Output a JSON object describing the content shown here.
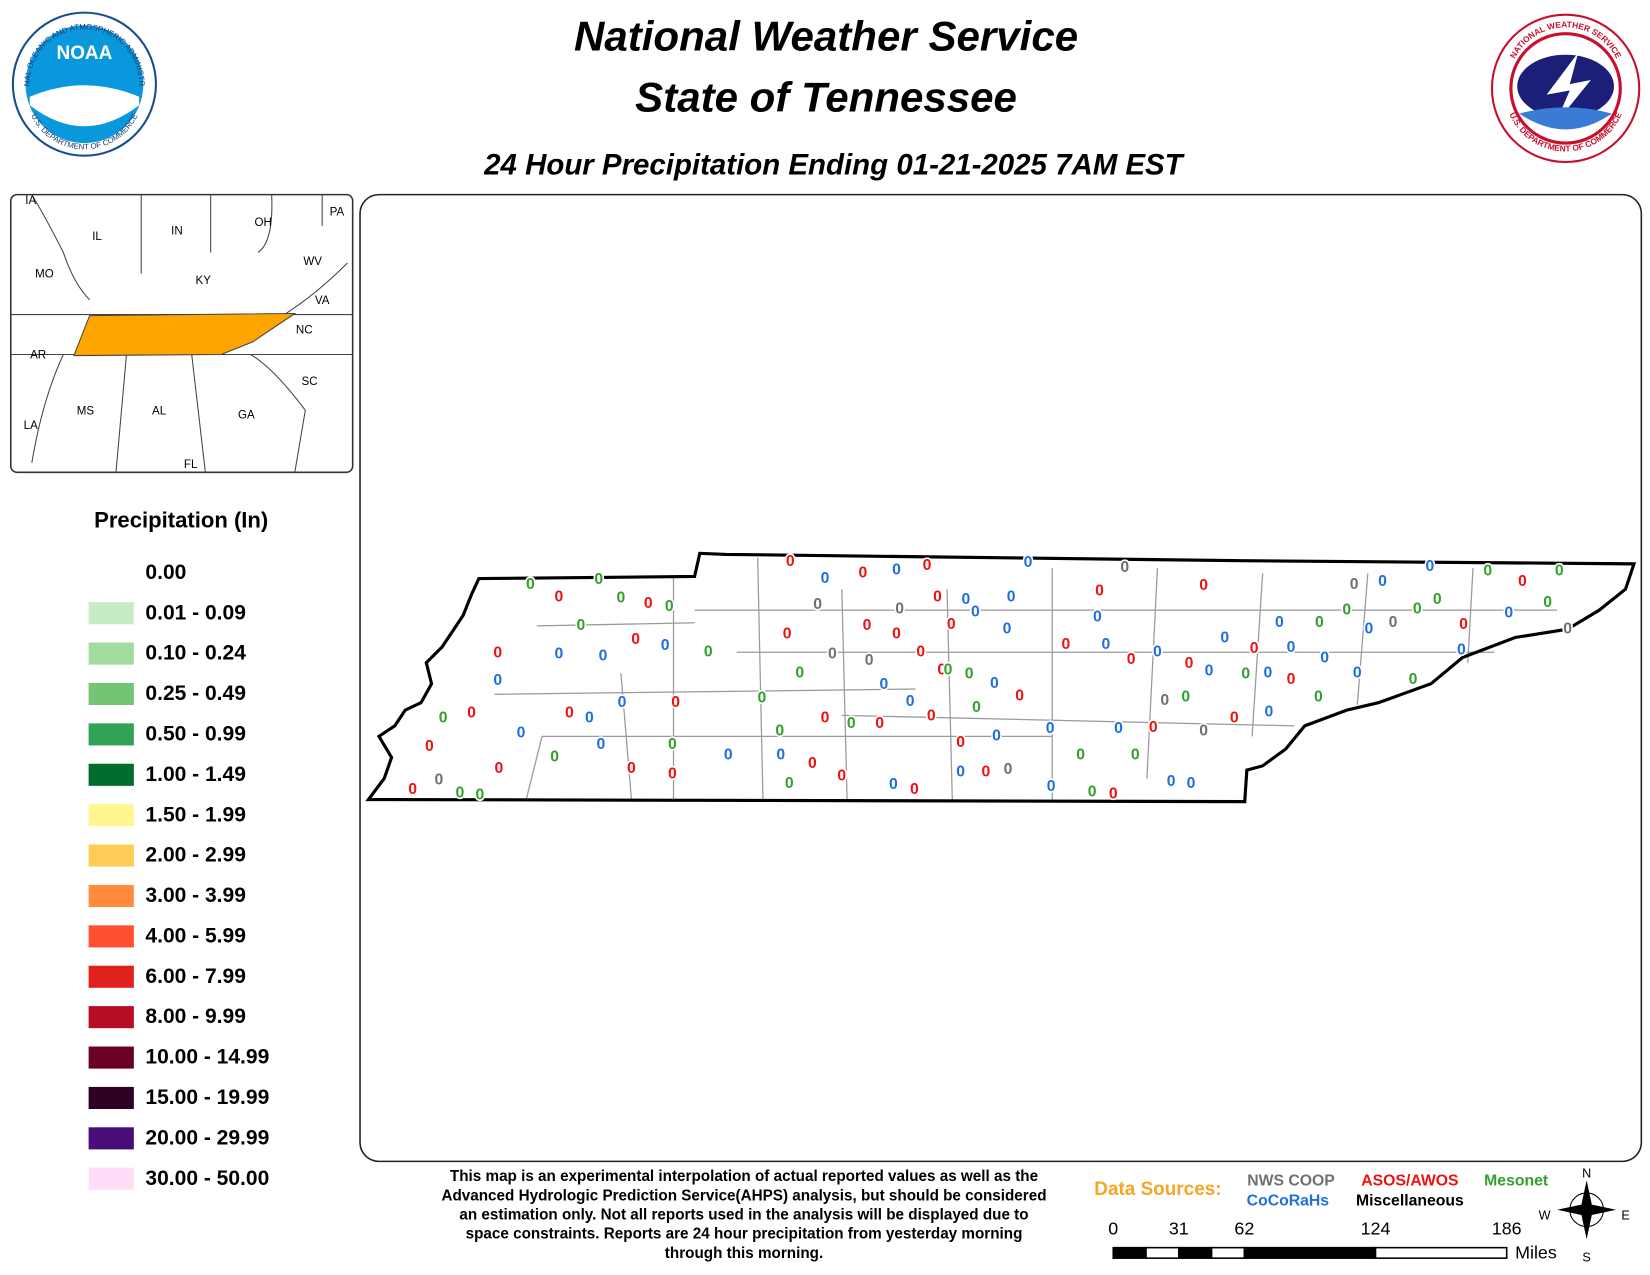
{
  "header": {
    "title": "National Weather Service",
    "subtitle": "State of Tennessee",
    "map_title": "24 Hour Precipitation Ending 01-21-2025 7AM EST"
  },
  "logos": {
    "noaa": {
      "name": "NOAA",
      "ring_top": "NATIONAL OCEANIC AND ATMOSPHERIC ADMINISTRATION",
      "ring_bottom": "U.S. DEPARTMENT OF COMMERCE"
    },
    "nws": {
      "ring_top": "NATIONAL WEATHER SERVICE",
      "ring_bottom": "U.S. DEPARTMENT OF COMMERCE"
    }
  },
  "inset": {
    "highlight_color": "#ffa500",
    "labels": [
      "IA",
      "IL",
      "IN",
      "OH",
      "PA",
      "MO",
      "KY",
      "WV",
      "VA",
      "NC",
      "AR",
      "SC",
      "MS",
      "AL",
      "GA",
      "LA",
      "FL"
    ]
  },
  "legend": {
    "title": "Precipitation (In)",
    "items": [
      {
        "label": "0.00",
        "color": "#ffffff"
      },
      {
        "label": "0.01 - 0.09",
        "color": "#c7ebc5"
      },
      {
        "label": "0.10 - 0.24",
        "color": "#a1dc9c"
      },
      {
        "label": "0.25 - 0.49",
        "color": "#74c476"
      },
      {
        "label": "0.50 - 0.99",
        "color": "#31a354"
      },
      {
        "label": "1.00 - 1.49",
        "color": "#006d2c"
      },
      {
        "label": "1.50 - 1.99",
        "color": "#fff68f"
      },
      {
        "label": "2.00 - 2.99",
        "color": "#ffcc55"
      },
      {
        "label": "3.00 - 3.99",
        "color": "#ff8c3c"
      },
      {
        "label": "4.00 - 5.99",
        "color": "#ff5030"
      },
      {
        "label": "6.00 - 7.99",
        "color": "#e0201c"
      },
      {
        "label": "8.00 - 9.99",
        "color": "#b80b24"
      },
      {
        "label": "10.00 - 14.99",
        "color": "#6a0022"
      },
      {
        "label": "15.00 - 19.99",
        "color": "#300024"
      },
      {
        "label": "20.00 - 29.99",
        "color": "#4a0c78"
      },
      {
        "label": "30.00 - 50.00",
        "color": "#ffddf8"
      }
    ]
  },
  "data_sources": {
    "title": "Data Sources:",
    "sources": [
      {
        "name": "NWS COOP",
        "color": "#707070",
        "values": [
          0,
          0,
          0,
          0,
          0,
          0,
          0,
          0,
          0,
          0,
          0,
          0
        ]
      },
      {
        "name": "ASOS/AWOS",
        "color": "#ee1111",
        "values": [
          0,
          0,
          0,
          0,
          0,
          0,
          0,
          0,
          0,
          0,
          0,
          0,
          0,
          0,
          0,
          0,
          0,
          0,
          0,
          0,
          0,
          0,
          0,
          0,
          0,
          0,
          0,
          0,
          0,
          0,
          0,
          0,
          0,
          0,
          0,
          0,
          0,
          0,
          0,
          0,
          0,
          0,
          0
        ]
      },
      {
        "name": "Mesonet",
        "color": "#33a02c",
        "values": [
          0,
          0,
          0,
          0,
          0,
          0,
          0,
          0,
          0,
          0,
          0,
          0,
          0,
          0,
          0,
          0,
          0,
          0,
          0,
          0,
          0,
          0,
          0,
          0,
          0,
          0,
          0,
          0,
          0,
          0,
          0,
          0,
          0,
          0
        ]
      },
      {
        "name": "CoCoRaHs",
        "color": "#1f6fe0",
        "values": [
          0,
          0,
          0,
          0,
          0,
          0,
          0,
          0,
          0,
          0,
          0,
          0,
          0,
          0,
          0,
          0,
          0,
          0,
          0,
          0,
          0,
          0,
          0,
          0,
          0,
          0,
          0,
          0,
          0,
          0,
          0,
          0,
          0,
          0,
          0,
          0,
          0,
          0,
          0,
          0,
          0,
          0,
          0,
          0
        ]
      },
      {
        "name": "Miscellaneous",
        "color": "#000000",
        "values": []
      }
    ]
  },
  "scale": {
    "ticks": [
      0,
      31,
      62,
      124,
      186
    ],
    "unit": "Miles"
  },
  "compass": {
    "n": "N",
    "e": "E",
    "s": "S",
    "w": "W"
  },
  "disclaimer": [
    "This map is an experimental interpolation of actual reported values as well as the",
    "Advanced Hydrologic Prediction Service(AHPS) analysis, but should be considered",
    "an estimation only. Not all reports used in the analysis will be displayed due to",
    "space constraints. Reports are 24 hour precipitation from yesterday morning",
    "through this morning."
  ]
}
